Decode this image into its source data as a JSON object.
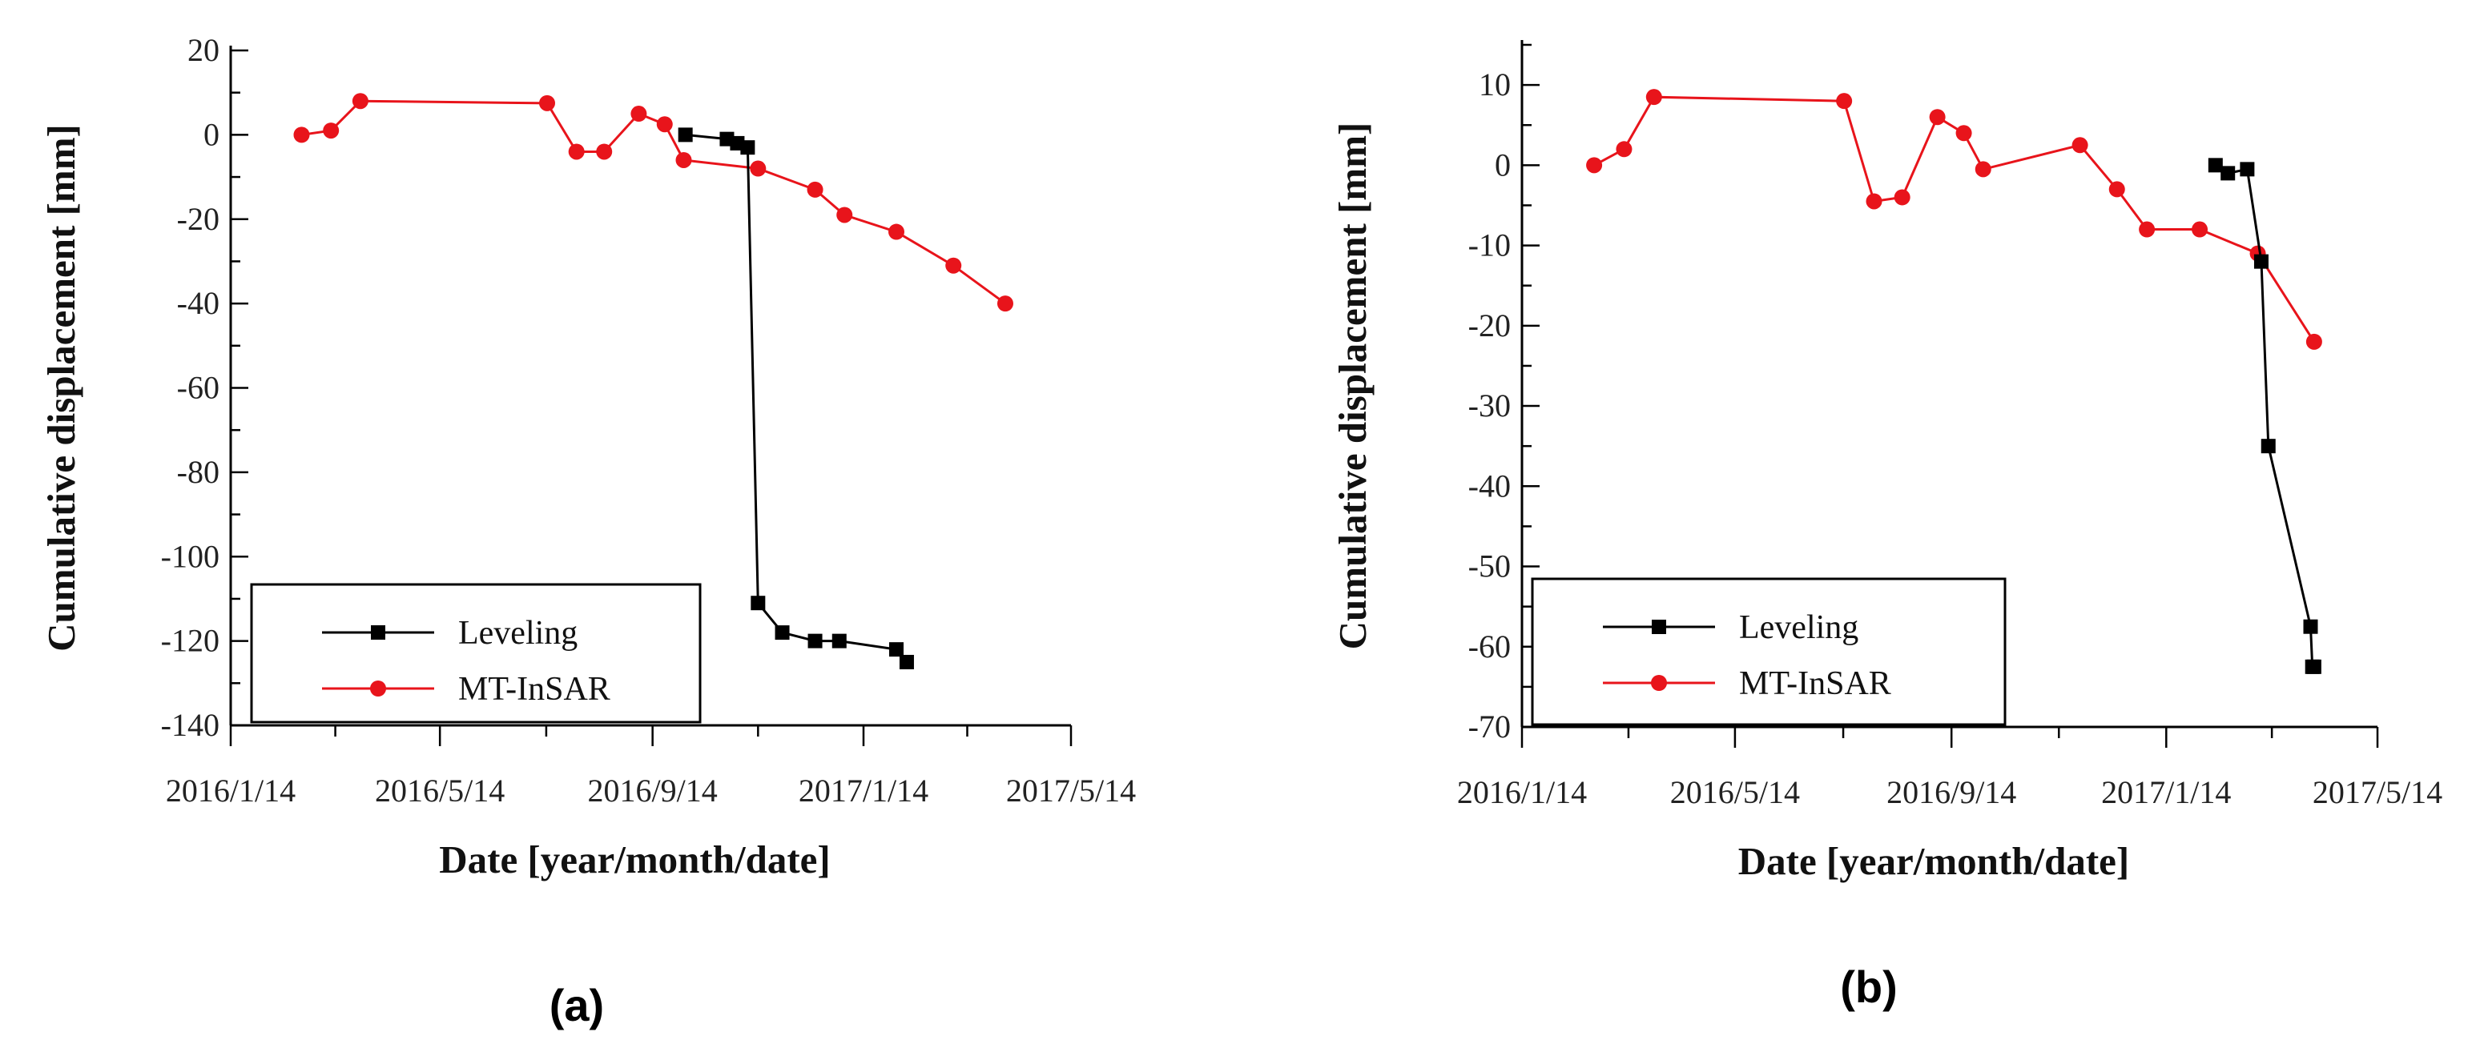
{
  "chart_data": [
    {
      "type": "line",
      "panel_label": "(a)",
      "xlabel": "Date [year/month/date]",
      "ylabel": "Cumulative displacement  [mm]",
      "ylim": [
        -140,
        20
      ],
      "yticks": [
        20,
        0,
        -20,
        -40,
        -60,
        -80,
        -100,
        -120,
        -140
      ],
      "xlim": [
        "2016-01-14",
        "2017-05-14"
      ],
      "xticks": [
        "2016/1/14",
        "2016/5/14",
        "2016/9/14",
        "2017/1/14",
        "2017/5/14"
      ],
      "legend_position": "bottom-left",
      "series": [
        {
          "name": "Leveling",
          "color": "#000000",
          "marker": "square",
          "points": [
            {
              "x": "2016-10-03",
              "y": 0
            },
            {
              "x": "2016-10-27",
              "y": -1
            },
            {
              "x": "2016-11-02",
              "y": -2
            },
            {
              "x": "2016-11-08",
              "y": -3
            },
            {
              "x": "2016-11-14",
              "y": -111
            },
            {
              "x": "2016-11-28",
              "y": -118
            },
            {
              "x": "2016-12-17",
              "y": -120
            },
            {
              "x": "2016-12-31",
              "y": -120
            },
            {
              "x": "2017-02-02",
              "y": -122
            },
            {
              "x": "2017-02-08",
              "y": -125
            }
          ]
        },
        {
          "name": "MT-InSAR",
          "color": "#e8141b",
          "marker": "circle",
          "points": [
            {
              "x": "2016-02-24",
              "y": 0
            },
            {
              "x": "2016-03-12",
              "y": 1
            },
            {
              "x": "2016-03-29",
              "y": 8
            },
            {
              "x": "2016-07-15",
              "y": 7.5
            },
            {
              "x": "2016-08-01",
              "y": -4
            },
            {
              "x": "2016-08-17",
              "y": -4
            },
            {
              "x": "2016-09-06",
              "y": 5
            },
            {
              "x": "2016-09-21",
              "y": 2.5
            },
            {
              "x": "2016-10-02",
              "y": -6
            },
            {
              "x": "2016-11-14",
              "y": -8
            },
            {
              "x": "2016-12-17",
              "y": -13
            },
            {
              "x": "2017-01-03",
              "y": -19
            },
            {
              "x": "2017-02-02",
              "y": -23
            },
            {
              "x": "2017-03-07",
              "y": -31
            },
            {
              "x": "2017-04-06",
              "y": -40
            }
          ]
        }
      ]
    },
    {
      "type": "line",
      "panel_label": "(b)",
      "xlabel": "Date [year/month/date]",
      "ylabel": "Cumulative displacement  [mm]",
      "ylim": [
        -70,
        15
      ],
      "yticks": [
        10,
        0,
        -10,
        -20,
        -30,
        -40,
        -50,
        -60,
        -70
      ],
      "xlim": [
        "2016-01-14",
        "2017-05-14"
      ],
      "xticks": [
        "2016/1/14",
        "2016/5/14",
        "2016/9/14",
        "2017/1/14",
        "2017/5/14"
      ],
      "legend_position": "bottom-left",
      "series": [
        {
          "name": "Leveling",
          "color": "#000000",
          "marker": "square",
          "points": [
            {
              "x": "2017-02-11",
              "y": 0
            },
            {
              "x": "2017-02-18",
              "y": -1
            },
            {
              "x": "2017-03-01",
              "y": -0.5
            },
            {
              "x": "2017-03-09",
              "y": -12
            },
            {
              "x": "2017-03-13",
              "y": -35
            },
            {
              "x": "2017-04-06",
              "y": -57.5
            },
            {
              "x": "2017-04-07",
              "y": -62.5
            },
            {
              "x": "2017-04-08",
              "y": -62.5
            }
          ]
        },
        {
          "name": "MT-InSAR",
          "color": "#e8141b",
          "marker": "circle",
          "points": [
            {
              "x": "2016-02-24",
              "y": 0
            },
            {
              "x": "2016-03-12",
              "y": 2
            },
            {
              "x": "2016-03-29",
              "y": 8.5
            },
            {
              "x": "2016-07-15",
              "y": 8
            },
            {
              "x": "2016-08-01",
              "y": -4.5
            },
            {
              "x": "2016-08-17",
              "y": -4
            },
            {
              "x": "2016-09-06",
              "y": 6
            },
            {
              "x": "2016-09-21",
              "y": 4
            },
            {
              "x": "2016-10-02",
              "y": -0.5
            },
            {
              "x": "2016-11-26",
              "y": 2.5
            },
            {
              "x": "2016-12-17",
              "y": -3
            },
            {
              "x": "2017-01-03",
              "y": -8
            },
            {
              "x": "2017-02-02",
              "y": -8
            },
            {
              "x": "2017-03-07",
              "y": -11
            },
            {
              "x": "2017-04-08",
              "y": -22
            }
          ]
        }
      ]
    }
  ]
}
